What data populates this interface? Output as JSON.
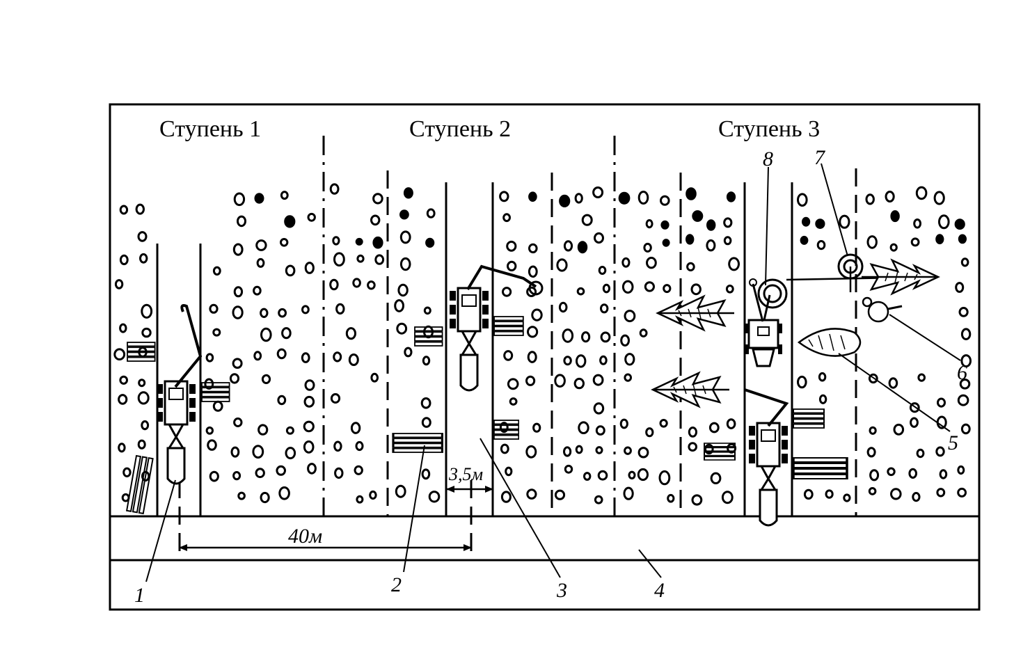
{
  "diagram": {
    "stages": [
      "Ступень 1",
      "Ступень 2",
      "Ступень 3"
    ],
    "dimensions": {
      "total_width": "40м",
      "strip_width": "3,5м"
    },
    "callouts": [
      "1",
      "2",
      "3",
      "4",
      "5",
      "6",
      "7",
      "8"
    ],
    "colors": {
      "ink": "#000000",
      "paper": "#ffffff"
    }
  }
}
